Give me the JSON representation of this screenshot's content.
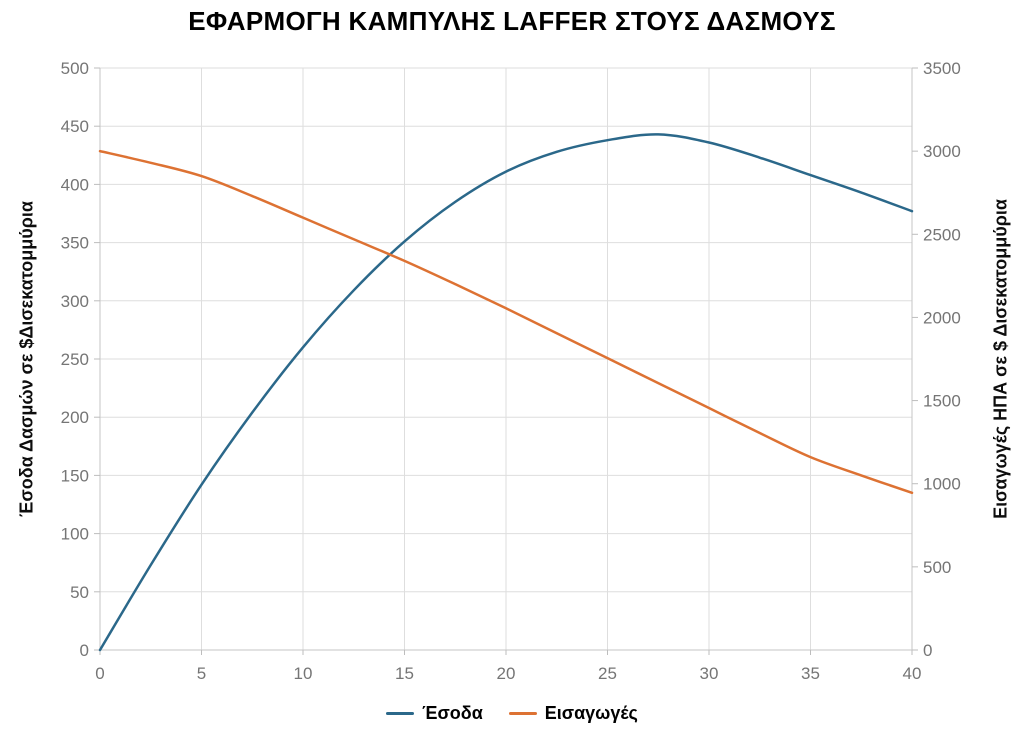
{
  "chart_data": {
    "type": "line",
    "title": "ΕΦΑΡΜΟΓΗ ΚΑΜΠΥΛΗΣ LAFFER ΣΤΟΥΣ ΔΑΣΜΟΥΣ",
    "xlabel": "",
    "left_ylabel": "Έσοδα Δασμών σε $Δισεκατομμύρια",
    "right_ylabel": "Εισαγωγές ΗΠΑ σε $ Δισεκατομμύρια",
    "xlim": [
      0,
      40
    ],
    "left_ylim": [
      0,
      500
    ],
    "right_ylim": [
      0,
      3500
    ],
    "x_ticks": [
      0,
      5,
      10,
      15,
      20,
      25,
      30,
      35,
      40
    ],
    "left_ticks": [
      0,
      50,
      100,
      150,
      200,
      250,
      300,
      350,
      400,
      450,
      500
    ],
    "right_ticks": [
      0,
      500,
      1000,
      1500,
      2000,
      2500,
      3000,
      3500
    ],
    "grid": true,
    "legend_position": "bottom",
    "x": [
      0,
      2.5,
      5,
      7.5,
      10,
      12.5,
      15,
      17.5,
      20,
      22.5,
      25,
      27.5,
      30,
      32.5,
      35,
      37.5,
      40
    ],
    "series": [
      {
        "name": "Έσοδα",
        "axis": "left",
        "color": "#2b688a",
        "values": [
          0,
          73,
          142,
          204,
          260,
          309,
          351,
          385,
          411,
          428,
          438,
          443,
          436,
          423,
          408,
          393,
          377
        ]
      },
      {
        "name": "Εισαγωγές",
        "axis": "right",
        "color": "#dd7233",
        "values": [
          3000,
          2930,
          2850,
          2730,
          2600,
          2470,
          2340,
          2200,
          2055,
          1905,
          1755,
          1605,
          1455,
          1305,
          1160,
          1050,
          945
        ]
      }
    ],
    "colors": {
      "grid": "#dedede",
      "axis_line": "#c6c6c6",
      "tick_mark": "#bdbdbd",
      "tick_label": "#757575",
      "title_text": "#000000"
    }
  }
}
